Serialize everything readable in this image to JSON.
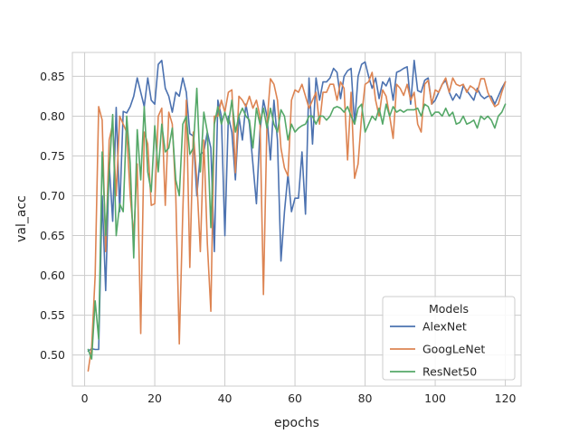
{
  "chart_data": {
    "type": "line",
    "title": "",
    "xlabel": "epochs",
    "ylabel": "val_acc",
    "xlim": [
      -3.5,
      124.5
    ],
    "ylim": [
      0.461,
      0.88
    ],
    "xticks": [
      0,
      20,
      40,
      60,
      80,
      100,
      120
    ],
    "yticks": [
      0.5,
      0.55,
      0.6,
      0.65,
      0.7,
      0.75,
      0.8,
      0.85
    ],
    "grid": true,
    "legend": {
      "title": "Models",
      "placement": "lower-right"
    },
    "series": [
      {
        "name": "AlexNet",
        "color": "#4c72b0",
        "x": [
          1,
          2,
          3,
          4,
          5,
          6,
          7,
          8,
          9,
          10,
          11,
          12,
          13,
          14,
          15,
          16,
          17,
          18,
          19,
          20,
          21,
          22,
          23,
          24,
          25,
          26,
          27,
          28,
          29,
          30,
          31,
          32,
          33,
          34,
          35,
          36,
          37,
          38,
          39,
          40,
          41,
          42,
          43,
          44,
          45,
          46,
          47,
          48,
          49,
          50,
          51,
          52,
          53,
          54,
          55,
          56,
          57,
          58,
          59,
          60,
          61,
          62,
          63,
          64,
          65,
          66,
          67,
          68,
          69,
          70,
          71,
          72,
          73,
          74,
          75,
          76,
          77,
          78,
          79,
          80,
          81,
          82,
          83,
          84,
          85,
          86,
          87,
          88,
          89,
          90,
          91,
          92,
          93,
          94,
          95,
          96,
          97,
          98,
          99,
          100,
          101,
          102,
          103,
          104,
          105,
          106,
          107,
          108,
          109,
          110,
          111,
          112,
          113,
          114,
          115,
          116,
          117,
          118,
          119,
          120
        ],
        "values": [
          0.505,
          0.508,
          0.507,
          0.507,
          0.7,
          0.581,
          0.74,
          0.668,
          0.811,
          0.68,
          0.806,
          0.804,
          0.812,
          0.825,
          0.848,
          0.83,
          0.812,
          0.848,
          0.82,
          0.815,
          0.865,
          0.87,
          0.835,
          0.825,
          0.805,
          0.83,
          0.825,
          0.848,
          0.83,
          0.778,
          0.775,
          0.7,
          0.752,
          0.755,
          0.78,
          0.76,
          0.63,
          0.82,
          0.8,
          0.65,
          0.8,
          0.78,
          0.72,
          0.8,
          0.77,
          0.815,
          0.79,
          0.74,
          0.69,
          0.78,
          0.82,
          0.8,
          0.745,
          0.82,
          0.77,
          0.618,
          0.68,
          0.727,
          0.68,
          0.697,
          0.697,
          0.755,
          0.677,
          0.848,
          0.765,
          0.848,
          0.82,
          0.843,
          0.843,
          0.848,
          0.86,
          0.855,
          0.822,
          0.85,
          0.857,
          0.86,
          0.79,
          0.85,
          0.865,
          0.868,
          0.85,
          0.835,
          0.848,
          0.822,
          0.843,
          0.838,
          0.848,
          0.82,
          0.855,
          0.857,
          0.86,
          0.862,
          0.815,
          0.87,
          0.832,
          0.83,
          0.845,
          0.848,
          0.815,
          0.82,
          0.83,
          0.84,
          0.845,
          0.83,
          0.82,
          0.828,
          0.822,
          0.838,
          0.832,
          0.826,
          0.82,
          0.835,
          0.826,
          0.822,
          0.825,
          0.825,
          0.815,
          0.825,
          0.835,
          0.843
        ]
      },
      {
        "name": "GoogLeNet",
        "color": "#dd8452",
        "x": [
          1,
          2,
          3,
          4,
          5,
          6,
          7,
          8,
          9,
          10,
          11,
          12,
          13,
          14,
          15,
          16,
          17,
          18,
          19,
          20,
          21,
          22,
          23,
          24,
          25,
          26,
          27,
          28,
          29,
          30,
          31,
          32,
          33,
          34,
          35,
          36,
          37,
          38,
          39,
          40,
          41,
          42,
          43,
          44,
          45,
          46,
          47,
          48,
          49,
          50,
          51,
          52,
          53,
          54,
          55,
          56,
          57,
          58,
          59,
          60,
          61,
          62,
          63,
          64,
          65,
          66,
          67,
          68,
          69,
          70,
          71,
          72,
          73,
          74,
          75,
          76,
          77,
          78,
          79,
          80,
          81,
          82,
          83,
          84,
          85,
          86,
          87,
          88,
          89,
          90,
          91,
          92,
          93,
          94,
          95,
          96,
          97,
          98,
          99,
          100,
          101,
          102,
          103,
          104,
          105,
          106,
          107,
          108,
          109,
          110,
          111,
          112,
          113,
          114,
          115,
          116,
          117,
          118,
          119,
          120
        ],
        "values": [
          0.48,
          0.51,
          0.6,
          0.812,
          0.795,
          0.63,
          0.77,
          0.79,
          0.7,
          0.8,
          0.79,
          0.78,
          0.7,
          0.65,
          0.74,
          0.527,
          0.78,
          0.765,
          0.688,
          0.69,
          0.8,
          0.81,
          0.688,
          0.805,
          0.79,
          0.7,
          0.514,
          0.68,
          0.82,
          0.61,
          0.78,
          0.72,
          0.63,
          0.77,
          0.64,
          0.555,
          0.8,
          0.8,
          0.82,
          0.805,
          0.83,
          0.833,
          0.729,
          0.825,
          0.82,
          0.812,
          0.825,
          0.81,
          0.82,
          0.8,
          0.576,
          0.79,
          0.847,
          0.84,
          0.82,
          0.76,
          0.735,
          0.725,
          0.82,
          0.833,
          0.83,
          0.84,
          0.825,
          0.81,
          0.82,
          0.83,
          0.79,
          0.83,
          0.83,
          0.84,
          0.84,
          0.82,
          0.843,
          0.835,
          0.745,
          0.83,
          0.722,
          0.74,
          0.8,
          0.84,
          0.843,
          0.855,
          0.82,
          0.8,
          0.833,
          0.825,
          0.8,
          0.772,
          0.84,
          0.835,
          0.826,
          0.84,
          0.82,
          0.83,
          0.79,
          0.78,
          0.84,
          0.845,
          0.815,
          0.833,
          0.83,
          0.84,
          0.848,
          0.83,
          0.848,
          0.84,
          0.838,
          0.84,
          0.83,
          0.838,
          0.835,
          0.83,
          0.847,
          0.847,
          0.83,
          0.82,
          0.812,
          0.815,
          0.83,
          0.843
        ]
      },
      {
        "name": "ResNet50",
        "color": "#55a868",
        "x": [
          1,
          2,
          3,
          4,
          5,
          6,
          7,
          8,
          9,
          10,
          11,
          12,
          13,
          14,
          15,
          16,
          17,
          18,
          19,
          20,
          21,
          22,
          23,
          24,
          25,
          26,
          27,
          28,
          29,
          30,
          31,
          32,
          33,
          34,
          35,
          36,
          37,
          38,
          39,
          40,
          41,
          42,
          43,
          44,
          45,
          46,
          47,
          48,
          49,
          50,
          51,
          52,
          53,
          54,
          55,
          56,
          57,
          58,
          59,
          60,
          61,
          62,
          63,
          64,
          65,
          66,
          67,
          68,
          69,
          70,
          71,
          72,
          73,
          74,
          75,
          76,
          77,
          78,
          79,
          80,
          81,
          82,
          83,
          84,
          85,
          86,
          87,
          88,
          89,
          90,
          91,
          92,
          93,
          94,
          95,
          96,
          97,
          98,
          99,
          100,
          101,
          102,
          103,
          104,
          105,
          106,
          107,
          108,
          109,
          110,
          111,
          112,
          113,
          114,
          115,
          116,
          117,
          118,
          119,
          120
        ],
        "values": [
          0.507,
          0.495,
          0.568,
          0.52,
          0.755,
          0.65,
          0.73,
          0.802,
          0.65,
          0.69,
          0.68,
          0.8,
          0.74,
          0.622,
          0.783,
          0.72,
          0.812,
          0.73,
          0.705,
          0.788,
          0.73,
          0.79,
          0.755,
          0.76,
          0.785,
          0.72,
          0.7,
          0.79,
          0.8,
          0.752,
          0.76,
          0.835,
          0.73,
          0.805,
          0.78,
          0.66,
          0.79,
          0.812,
          0.79,
          0.805,
          0.79,
          0.82,
          0.78,
          0.8,
          0.81,
          0.8,
          0.795,
          0.76,
          0.81,
          0.79,
          0.81,
          0.785,
          0.81,
          0.79,
          0.78,
          0.808,
          0.8,
          0.77,
          0.79,
          0.78,
          0.785,
          0.788,
          0.79,
          0.8,
          0.8,
          0.79,
          0.8,
          0.8,
          0.795,
          0.8,
          0.81,
          0.812,
          0.81,
          0.805,
          0.812,
          0.8,
          0.79,
          0.81,
          0.815,
          0.78,
          0.79,
          0.8,
          0.795,
          0.81,
          0.79,
          0.815,
          0.8,
          0.812,
          0.805,
          0.808,
          0.805,
          0.808,
          0.808,
          0.808,
          0.81,
          0.8,
          0.815,
          0.812,
          0.8,
          0.805,
          0.805,
          0.8,
          0.81,
          0.8,
          0.805,
          0.79,
          0.792,
          0.8,
          0.79,
          0.792,
          0.795,
          0.785,
          0.8,
          0.796,
          0.8,
          0.795,
          0.785,
          0.8,
          0.805,
          0.815
        ]
      }
    ]
  }
}
